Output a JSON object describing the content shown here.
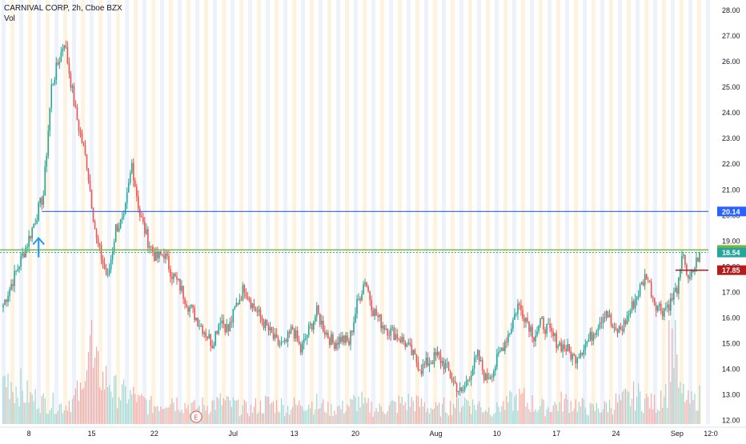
{
  "header": {
    "symbol_line": "CARNIVAL CORP, 2h, Cboe BZX",
    "volume_label": "Vol"
  },
  "chart_data": {
    "type": "candlestick",
    "x_ticks": [
      "8",
      "15",
      "22",
      "Jul",
      "13",
      "20",
      "Aug",
      "10",
      "17",
      "24",
      "Sep",
      "12:0"
    ],
    "y_ticks": [
      "28.00",
      "27.00",
      "26.00",
      "25.00",
      "24.00",
      "23.00",
      "22.00",
      "21.00",
      "20.00",
      "19.00",
      "18.00",
      "17.00",
      "16.00",
      "15.00",
      "14.00",
      "13.00",
      "12.00"
    ],
    "ylim": [
      11.85,
      28.2
    ],
    "series": [
      {
        "idx": 0,
        "close": 16.5
      },
      {
        "idx": 15,
        "close": 18.9
      },
      {
        "idx": 25,
        "close": 20.8
      },
      {
        "idx": 30,
        "close": 25.0
      },
      {
        "idx": 38,
        "close": 26.8
      },
      {
        "idx": 45,
        "close": 24.0
      },
      {
        "idx": 52,
        "close": 22.0
      },
      {
        "idx": 58,
        "close": 19.0
      },
      {
        "idx": 65,
        "close": 17.5
      },
      {
        "idx": 70,
        "close": 19.5
      },
      {
        "idx": 75,
        "close": 19.8
      },
      {
        "idx": 80,
        "close": 22.0
      },
      {
        "idx": 85,
        "close": 20.0
      },
      {
        "idx": 90,
        "close": 19.0
      },
      {
        "idx": 95,
        "close": 18.3
      },
      {
        "idx": 100,
        "close": 18.5
      },
      {
        "idx": 105,
        "close": 17.7
      },
      {
        "idx": 110,
        "close": 17.2
      },
      {
        "idx": 115,
        "close": 16.5
      },
      {
        "idx": 120,
        "close": 16.0
      },
      {
        "idx": 125,
        "close": 15.5
      },
      {
        "idx": 130,
        "close": 15.0
      },
      {
        "idx": 135,
        "close": 16.0
      },
      {
        "idx": 140,
        "close": 15.5
      },
      {
        "idx": 145,
        "close": 16.5
      },
      {
        "idx": 150,
        "close": 17.2
      },
      {
        "idx": 155,
        "close": 16.5
      },
      {
        "idx": 160,
        "close": 16.0
      },
      {
        "idx": 165,
        "close": 15.5
      },
      {
        "idx": 170,
        "close": 15.0
      },
      {
        "idx": 175,
        "close": 14.9
      },
      {
        "idx": 180,
        "close": 15.6
      },
      {
        "idx": 185,
        "close": 14.7
      },
      {
        "idx": 190,
        "close": 15.5
      },
      {
        "idx": 195,
        "close": 16.2
      },
      {
        "idx": 200,
        "close": 15.5
      },
      {
        "idx": 205,
        "close": 15.0
      },
      {
        "idx": 210,
        "close": 15.2
      },
      {
        "idx": 215,
        "close": 15.0
      },
      {
        "idx": 220,
        "close": 16.5
      },
      {
        "idx": 225,
        "close": 17.5
      },
      {
        "idx": 230,
        "close": 16.3
      },
      {
        "idx": 235,
        "close": 15.8
      },
      {
        "idx": 240,
        "close": 15.5
      },
      {
        "idx": 245,
        "close": 15.3
      },
      {
        "idx": 250,
        "close": 15.0
      },
      {
        "idx": 255,
        "close": 14.5
      },
      {
        "idx": 260,
        "close": 14.0
      },
      {
        "idx": 265,
        "close": 14.3
      },
      {
        "idx": 270,
        "close": 14.5
      },
      {
        "idx": 275,
        "close": 14.1
      },
      {
        "idx": 280,
        "close": 13.5
      },
      {
        "idx": 285,
        "close": 13.0
      },
      {
        "idx": 290,
        "close": 13.8
      },
      {
        "idx": 295,
        "close": 14.5
      },
      {
        "idx": 300,
        "close": 13.6
      },
      {
        "idx": 305,
        "close": 14.0
      },
      {
        "idx": 310,
        "close": 14.8
      },
      {
        "idx": 315,
        "close": 15.5
      },
      {
        "idx": 320,
        "close": 16.5
      },
      {
        "idx": 325,
        "close": 16.0
      },
      {
        "idx": 330,
        "close": 15.3
      },
      {
        "idx": 335,
        "close": 15.8
      },
      {
        "idx": 340,
        "close": 15.4
      },
      {
        "idx": 345,
        "close": 15.0
      },
      {
        "idx": 350,
        "close": 14.8
      },
      {
        "idx": 355,
        "close": 14.4
      },
      {
        "idx": 360,
        "close": 14.8
      },
      {
        "idx": 365,
        "close": 15.2
      },
      {
        "idx": 370,
        "close": 15.8
      },
      {
        "idx": 375,
        "close": 16.3
      },
      {
        "idx": 380,
        "close": 15.4
      },
      {
        "idx": 385,
        "close": 15.6
      },
      {
        "idx": 390,
        "close": 16.3
      },
      {
        "idx": 395,
        "close": 17.0
      },
      {
        "idx": 400,
        "close": 17.7
      },
      {
        "idx": 405,
        "close": 16.6
      },
      {
        "idx": 410,
        "close": 16.3
      },
      {
        "idx": 415,
        "close": 16.6
      },
      {
        "idx": 420,
        "close": 17.3
      },
      {
        "idx": 423,
        "close": 18.6
      },
      {
        "idx": 426,
        "close": 17.3
      },
      {
        "idx": 430,
        "close": 18.0
      },
      {
        "idx": 433,
        "close": 18.54
      }
    ],
    "volume": [
      60,
      50,
      40,
      35,
      30,
      28,
      25,
      32,
      40,
      120,
      70,
      60,
      45,
      40,
      38,
      30,
      25,
      28,
      35,
      30,
      26,
      22,
      25,
      28,
      30,
      26,
      22,
      20,
      24,
      28,
      26,
      22,
      25,
      30,
      28,
      24,
      20,
      22,
      26,
      30,
      24,
      20,
      22,
      25,
      28,
      30,
      26,
      22,
      20,
      24,
      28,
      32,
      26,
      22,
      20,
      25,
      30,
      34,
      28,
      24,
      22,
      26,
      30,
      28,
      24,
      20,
      22,
      26,
      30,
      34,
      38,
      32,
      28,
      45,
      110,
      40,
      30,
      36
    ],
    "horizontal_levels": [
      {
        "value": 20.14,
        "label": "20.14",
        "color": "#2962ff"
      },
      {
        "value": 18.64,
        "label": "18.64",
        "color": "#7cb342"
      },
      {
        "value": 18.54,
        "label": "18.54",
        "color": "#26a69a"
      },
      {
        "value": 17.85,
        "label": "17.85",
        "color": "#b71c1c"
      }
    ],
    "up_color": "#26a69a",
    "down_color": "#ef5350",
    "annotations": [
      {
        "type": "arrow-up",
        "value": 19.1,
        "idx": 22
      },
      {
        "type": "earnings",
        "label": "E",
        "idx": 120
      }
    ]
  }
}
